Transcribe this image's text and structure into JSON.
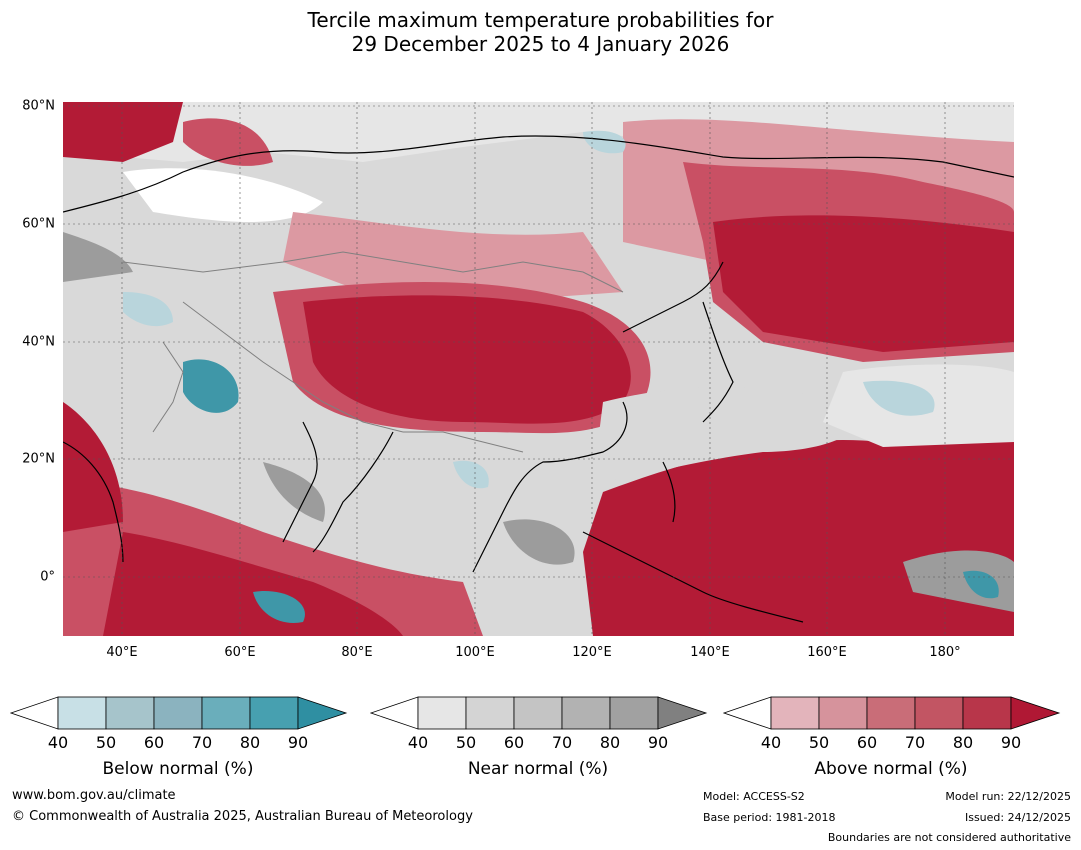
{
  "title": {
    "line1": "Tercile maximum temperature probabilities for",
    "line2": "29 December 2025 to 4 January 2026"
  },
  "map": {
    "lat_labels": [
      "80°N",
      "60°N",
      "40°N",
      "20°N",
      "0°"
    ],
    "lon_labels": [
      "40°E",
      "60°E",
      "80°E",
      "100°E",
      "120°E",
      "140°E",
      "160°E",
      "180°"
    ],
    "colors": {
      "above_strong": "#b31b36",
      "above_mid": "#c95064",
      "above_light": "#dc99a2",
      "near_light": "#d9d9d9",
      "near_dark": "#9c9c9c",
      "below_light": "#b9d5dc",
      "below_strong": "#3f97a8",
      "coastline": "#000000",
      "borders": "#808080"
    }
  },
  "legend": {
    "below": {
      "title": "Below normal (%)",
      "ticks": [
        "40",
        "50",
        "60",
        "70",
        "80",
        "90"
      ],
      "colors": [
        "#ffffff",
        "#c8e0e6",
        "#a6c4cb",
        "#8bb3bf",
        "#6aaebb",
        "#47a0b0",
        "#2f8fa2"
      ]
    },
    "near": {
      "title": "Near normal (%)",
      "ticks": [
        "40",
        "50",
        "60",
        "70",
        "80",
        "90"
      ],
      "colors": [
        "#ffffff",
        "#e6e6e6",
        "#d4d4d4",
        "#c4c4c4",
        "#b2b2b2",
        "#a1a1a1",
        "#808080"
      ]
    },
    "above": {
      "title": "Above normal (%)",
      "ticks": [
        "40",
        "50",
        "60",
        "70",
        "80",
        "90"
      ],
      "colors": [
        "#ffffff",
        "#e3b4bb",
        "#d6939c",
        "#c96d78",
        "#c25563",
        "#b8364a",
        "#b01834"
      ]
    }
  },
  "footer": {
    "url": "www.bom.gov.au/climate",
    "copyright": "© Commonwealth of Australia 2025, Australian Bureau of Meteorology",
    "model": "Model: ACCESS-S2",
    "base_period": "Base period: 1981-2018",
    "model_run": "Model run: 22/12/2025",
    "issued": "Issued: 24/12/2025",
    "disclaimer": "Boundaries are not considered authoritative"
  }
}
